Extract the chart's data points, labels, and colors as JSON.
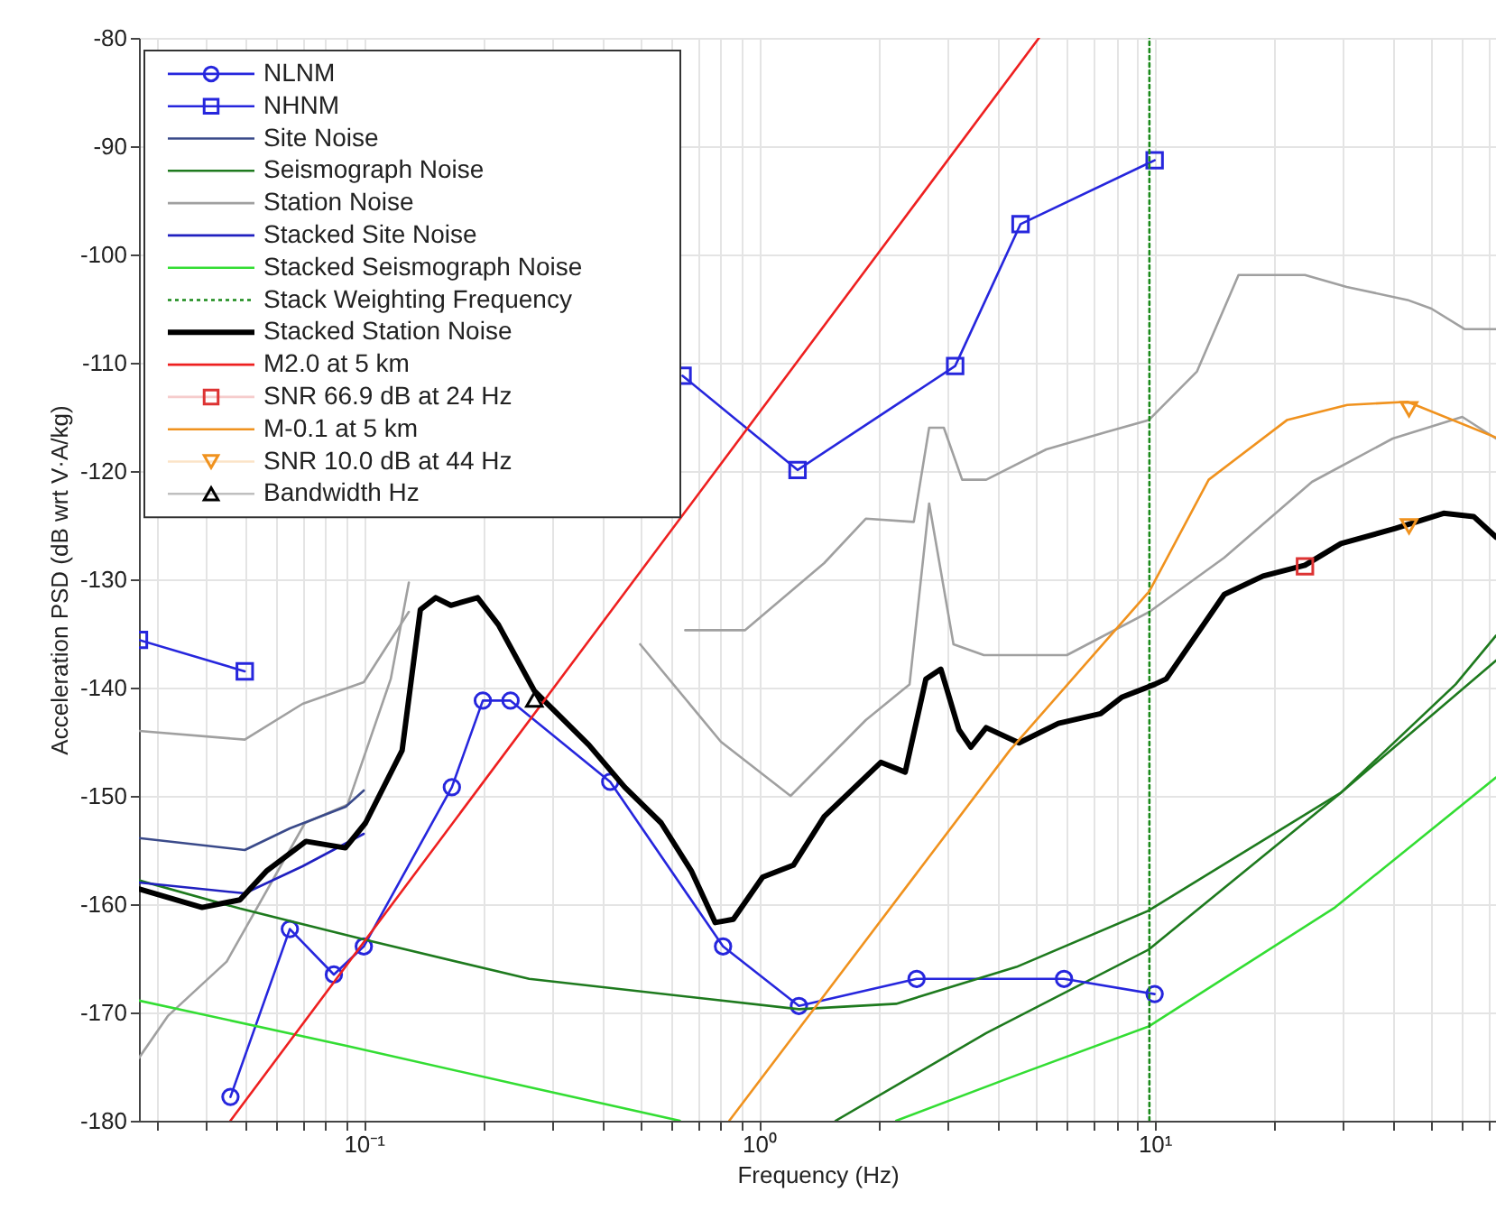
{
  "chart_data": {
    "type": "line",
    "xlabel": "Frequency (Hz)",
    "ylabel": "Acceleration PSD (dB wrt V·A/kg)",
    "xlim": [
      0.027,
      73
    ],
    "ylim": [
      -180,
      -80
    ],
    "xticks": [
      {
        "value": 0.03,
        "label": null
      },
      {
        "value": 0.04,
        "label": null
      },
      {
        "value": 0.05,
        "label": null
      },
      {
        "value": 0.06,
        "label": null
      },
      {
        "value": 0.07,
        "label": null
      },
      {
        "value": 0.08,
        "label": null
      },
      {
        "value": 0.09,
        "label": null
      },
      {
        "value": 0.1,
        "label": "10⁻¹"
      },
      {
        "value": 0.2,
        "label": null
      },
      {
        "value": 0.3,
        "label": null
      },
      {
        "value": 0.4,
        "label": null
      },
      {
        "value": 0.5,
        "label": null
      },
      {
        "value": 0.6,
        "label": null
      },
      {
        "value": 0.7,
        "label": null
      },
      {
        "value": 0.8,
        "label": null
      },
      {
        "value": 0.9,
        "label": null
      },
      {
        "value": 1,
        "label": "10⁰"
      },
      {
        "value": 2,
        "label": null
      },
      {
        "value": 3,
        "label": null
      },
      {
        "value": 4,
        "label": null
      },
      {
        "value": 5,
        "label": null
      },
      {
        "value": 6,
        "label": null
      },
      {
        "value": 7,
        "label": null
      },
      {
        "value": 8,
        "label": null
      },
      {
        "value": 9,
        "label": null
      },
      {
        "value": 10,
        "label": "10¹"
      },
      {
        "value": 20,
        "label": null
      },
      {
        "value": 30,
        "label": null
      },
      {
        "value": 40,
        "label": null
      },
      {
        "value": 50,
        "label": null
      },
      {
        "value": 60,
        "label": null
      },
      {
        "value": 70,
        "label": null
      }
    ],
    "yticks": [
      -180,
      -170,
      -160,
      -150,
      -140,
      -130,
      -120,
      -110,
      -100,
      -90,
      -80
    ],
    "log": "x",
    "grid": true,
    "legend": "top left",
    "series": [
      {
        "color": "#a0a0a0",
        "x": [
          0.027,
          0.032,
          0.045,
          0.071,
          0.091,
          0.117,
          0.13,
          0.3,
          0.5,
          0.8,
          1.2,
          1.86,
          2.4,
          2.69,
          3.1,
          3.7,
          6,
          9.7,
          15,
          25,
          40,
          60,
          73
        ],
        "values": [
          -174.2,
          -170.3,
          -165.3,
          -152.5,
          -150.8,
          -139.2,
          -130.3,
          null,
          -136,
          -145,
          -150,
          -143,
          -139.7,
          -123,
          -136,
          -137,
          -137,
          -133,
          -128,
          -121,
          -117,
          -115,
          -117
        ]
      },
      {
        "color": "#1e7a1e",
        "x": [
          1.56,
          3.75,
          9.65,
          29.6,
          57.7,
          73
        ],
        "values": [
          -180,
          -171.9,
          -164.2,
          -149.7,
          -139.7,
          -135.2
        ]
      },
      {
        "color": "#33dd33",
        "x": [
          2.22,
          4.47,
          9.65,
          28.6,
          73
        ],
        "values": [
          -180,
          -175.8,
          -171.3,
          -160.3,
          -148.3
        ]
      },
      {
        "name": "NLNM",
        "color": "#2626dd",
        "marker": "circle",
        "x": [
          0.046,
          0.065,
          0.084,
          0.1,
          0.167,
          0.2,
          0.235,
          0.42,
          0.81,
          1.26,
          2.5,
          5.9,
          10
        ],
        "values": [
          -177.8,
          -162.3,
          -166.5,
          -163.9,
          -149.2,
          -141.2,
          -141.2,
          -148.7,
          -163.9,
          -169.4,
          -166.9,
          -166.9,
          -168.3
        ]
      },
      {
        "name": "NHNM",
        "color": "#2626dd",
        "marker": "square",
        "x": [
          0.027,
          0.05,
          0.2,
          0.64,
          1.25,
          3.13,
          4.58,
          10
        ],
        "values": [
          -135.6,
          -138.5,
          null,
          -111.2,
          -119.9,
          -110.3,
          -97.2,
          -91.3
        ]
      },
      {
        "name": "Site Noise",
        "color": "#3a4a8a",
        "x": [
          0.027,
          0.05,
          0.065,
          0.09,
          0.1
        ],
        "values": [
          -153.9,
          -155.0,
          -153,
          -151,
          -149.5
        ]
      },
      {
        "name": "Seismograph Noise",
        "color": "#1e7a1e",
        "x": [
          0.027,
          0.0486,
          0.101,
          0.262,
          1.26,
          2.22,
          4.47,
          9.65,
          29.6,
          73
        ],
        "values": [
          -157.8,
          -160.4,
          -163.3,
          -166.9,
          -169.7,
          -169.2,
          -165.8,
          -160.6,
          -149.7,
          -137.5
        ]
      },
      {
        "name": "Station Noise",
        "color": "#a0a0a0",
        "x": [
          0.027,
          0.05,
          0.07,
          0.1,
          0.13,
          0.3,
          0.65,
          0.92,
          1.46,
          1.86,
          2.46,
          2.69,
          2.93,
          3.26,
          3.75,
          5.32,
          7.55,
          9.66,
          12.8,
          16.3,
          24.0,
          30.6,
          43.6,
          50.1,
          60.9,
          73
        ],
        "values": [
          -144,
          -144.8,
          -141.5,
          -139.5,
          -133,
          null,
          -134.7,
          -134.7,
          -128.5,
          -124.4,
          -124.7,
          -116,
          -116,
          -120.8,
          -120.8,
          -118,
          -116.4,
          -115.3,
          -110.8,
          -101.9,
          -101.9,
          -103,
          -104.2,
          -105,
          -106.9,
          -106.9
        ]
      },
      {
        "name": "Stacked Site Noise",
        "color": "#2020c0",
        "x": [
          0.027,
          0.05,
          0.07,
          0.1
        ],
        "values": [
          -158.0,
          -159.0,
          -156.5,
          -153.5
        ]
      },
      {
        "name": "Stacked Seismograph Noise",
        "color": "#33dd33",
        "x": [
          0.027,
          0.091,
          0.262,
          0.63
        ],
        "values": [
          -168.9,
          -173.1,
          -176.9,
          -180
        ]
      },
      {
        "name": "Stack Weighting Frequency",
        "color": "#1a8a1a",
        "line_style": "dotted",
        "x": [
          9.7,
          9.7
        ],
        "values": [
          -180,
          -80
        ]
      },
      {
        "name": "Stacked Station Noise",
        "color": "#000000",
        "x": [
          0.027,
          0.039,
          0.0486,
          0.0569,
          0.0714,
          0.0898,
          0.101,
          0.125,
          0.139,
          0.152,
          0.166,
          0.194,
          0.219,
          0.27,
          0.371,
          0.457,
          0.565,
          0.673,
          0.774,
          0.86,
          1.02,
          1.22,
          1.46,
          2.03,
          2.34,
          2.64,
          2.88,
          3.2,
          3.43,
          3.75,
          4.54,
          5.71,
          7.3,
          8.25,
          10.0,
          10.7,
          15.0,
          18.8,
          24.0,
          29.6,
          40.6,
          53.8,
          64.1,
          73
        ],
        "values": [
          -158.6,
          -160.3,
          -159.6,
          -156.9,
          -154.2,
          -154.8,
          -152.5,
          -145.8,
          -132.8,
          -131.7,
          -132.4,
          -131.7,
          -134.2,
          -140.3,
          -145.3,
          -149.2,
          -152.5,
          -156.9,
          -161.7,
          -161.4,
          -157.5,
          -156.4,
          -151.9,
          -146.9,
          -147.8,
          -139.2,
          -138.3,
          -143.9,
          -145.5,
          -143.7,
          -145.1,
          -143.3,
          -142.4,
          -140.9,
          -139.7,
          -139.2,
          -131.4,
          -129.7,
          -128.7,
          -126.7,
          -125.3,
          -123.9,
          -124.2,
          -126.1
        ]
      },
      {
        "name": "M2.0 at 5 km",
        "color": "#ee2020",
        "x": [
          0.046,
          5.1
        ],
        "values": [
          -180,
          -80
        ]
      },
      {
        "name": "SNR 66.9 dB at 24 Hz",
        "type": "scatter",
        "color": "#dd3333",
        "marker": "square",
        "x": [
          24
        ],
        "values": [
          -128.8
        ]
      },
      {
        "name": "M-0.1 at 5 km",
        "color": "#f0921e",
        "x": [
          0.84,
          4.3,
          9.7,
          13.7,
          21.6,
          30.7,
          43.6,
          73
        ],
        "values": [
          -180,
          -145.8,
          -131.1,
          -120.8,
          -115.3,
          -113.9,
          -113.6,
          -116.9
        ]
      },
      {
        "name": "SNR 10.0 dB at 44 Hz",
        "type": "scatter",
        "color": "#f0921e",
        "marker": "triangle-down",
        "x": [
          44,
          44
        ],
        "values": [
          -114.3,
          -125.1
        ]
      },
      {
        "name": "Bandwidth  Hz",
        "type": "scatter",
        "color": "#000000",
        "marker": "triangle",
        "x": [
          0.27
        ],
        "values": [
          -141.1
        ]
      }
    ]
  }
}
